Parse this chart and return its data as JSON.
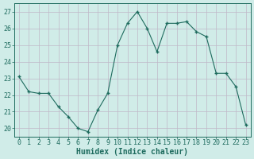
{
  "x": [
    0,
    1,
    2,
    3,
    4,
    5,
    6,
    7,
    8,
    9,
    10,
    11,
    12,
    13,
    14,
    15,
    16,
    17,
    18,
    19,
    20,
    21,
    22,
    23
  ],
  "y": [
    23.1,
    22.2,
    22.1,
    22.1,
    21.3,
    20.7,
    20.0,
    19.8,
    21.1,
    22.1,
    25.0,
    26.3,
    27.0,
    26.0,
    24.6,
    26.3,
    26.3,
    26.4,
    25.8,
    25.5,
    23.3,
    23.3,
    22.5,
    20.2
  ],
  "xlabel": "Humidex (Indice chaleur)",
  "line_color": "#1e6b5e",
  "marker_color": "#1e6b5e",
  "bg_color": "#d0ece8",
  "grid_color": "#c0b8c8",
  "axis_color": "#1e6b5e",
  "text_color": "#1e6b5e",
  "ylim": [
    19.5,
    27.5
  ],
  "yticks": [
    20,
    21,
    22,
    23,
    24,
    25,
    26,
    27
  ],
  "xticks": [
    0,
    1,
    2,
    3,
    4,
    5,
    6,
    7,
    8,
    9,
    10,
    11,
    12,
    13,
    14,
    15,
    16,
    17,
    18,
    19,
    20,
    21,
    22,
    23
  ],
  "font_size": 6.0,
  "xlabel_font_size": 7.0
}
